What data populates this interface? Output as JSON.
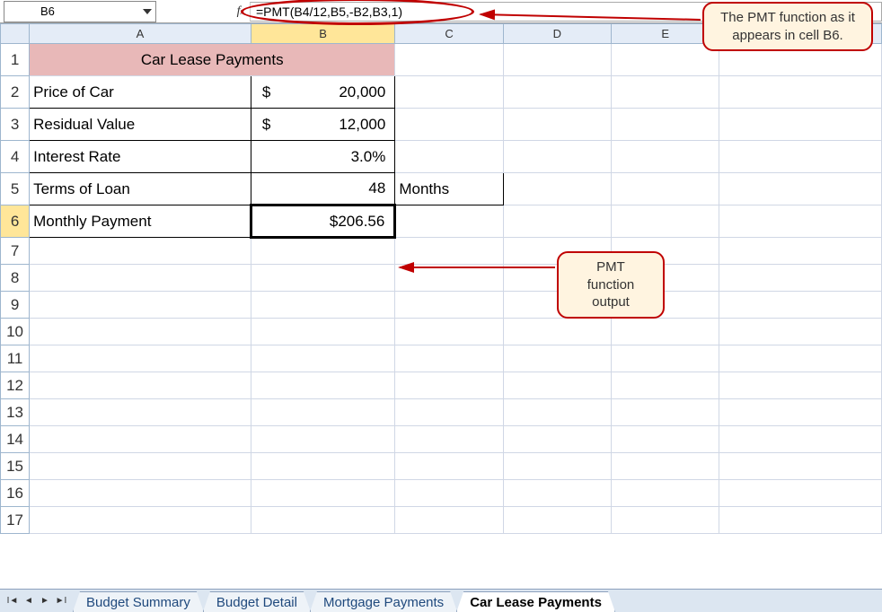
{
  "nameBox": "B6",
  "formula": "=PMT(B4/12,B5,-B2,B3,1)",
  "columns": [
    "A",
    "B",
    "C",
    "D",
    "E",
    "F"
  ],
  "activeCol": "B",
  "activeRow": 6,
  "rowCount": 17,
  "title": "Car Lease Payments",
  "rows": {
    "r2": {
      "label": "Price of Car",
      "currency": "$",
      "value": "20,000"
    },
    "r3": {
      "label": "Residual Value",
      "currency": "$",
      "value": "12,000"
    },
    "r4": {
      "label": "Interest Rate",
      "value": "3.0%"
    },
    "r5": {
      "label": "Terms of Loan",
      "value": "48",
      "unit": "Months"
    },
    "r6": {
      "label": "Monthly Payment",
      "value": "$206.56"
    }
  },
  "tabs": [
    {
      "label": "Budget Summary",
      "active": false
    },
    {
      "label": "Budget Detail",
      "active": false
    },
    {
      "label": "Mortgage Payments",
      "active": false
    },
    {
      "label": "Car Lease Payments",
      "active": true
    }
  ],
  "callouts": {
    "top": "The PMT function as it appears in cell B6.",
    "mid": "PMT function output"
  },
  "colors": {
    "headerBg": "#e4ecf7",
    "headerActive": "#ffe699",
    "titleBg": "#e8b8b8",
    "calloutBg": "#fff4e0",
    "calloutBorder": "#c00000",
    "gridline": "#d0d7e5",
    "tabActive": "#ffffff",
    "tabInactive": "#eef3f8"
  }
}
